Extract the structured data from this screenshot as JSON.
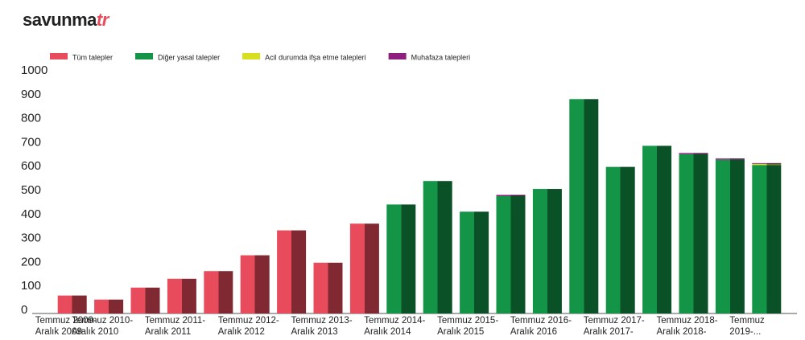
{
  "brand": {
    "text": "savunma",
    "accent": "tr"
  },
  "chart_data": {
    "type": "stacked_bar",
    "categories": [
      "Temmuz 2009-\nAralık 2009",
      "Temmuz 2010-\nAralık 2010",
      null,
      "Temmuz 2011-\nAralık 2011",
      null,
      "Temmuz 2012-\nAralık 2012",
      null,
      "Temmuz 2013-\nAralık 2013",
      null,
      "Temmuz 2014-\nAralık 2014",
      null,
      "Temmuz 2015-\nAralık 2015",
      null,
      "Temmuz 2016-\nAralık 2016",
      null,
      "Temmuz 2017-\nAralık 2017-",
      null,
      "Temmuz 2018-\nAralık 2018-",
      null,
      "Temmuz\n2019-..."
    ],
    "series": [
      {
        "name": "Tüm talepler",
        "color": "#e84b5b",
        "values": [
          75,
          58,
          108,
          145,
          177,
          243,
          347,
          212,
          375,
          null,
          null,
          null,
          null,
          null,
          null,
          null,
          null,
          null,
          null,
          null
        ]
      },
      {
        "name": "Diğer yasal talepler",
        "color": "#149447",
        "values": [
          null,
          null,
          null,
          null,
          null,
          null,
          null,
          null,
          null,
          455,
          553,
          425,
          490,
          520,
          895,
          612,
          700,
          665,
          642,
          620
        ]
      },
      {
        "name": "Acil durumda ifşa etme talepleri",
        "color": "#d6e021",
        "values": [
          null,
          null,
          null,
          null,
          null,
          null,
          null,
          null,
          null,
          null,
          null,
          null,
          null,
          null,
          null,
          null,
          null,
          null,
          null,
          5
        ]
      },
      {
        "name": "Muhafaza talepleri",
        "color": "#8e1f7e",
        "values": [
          null,
          null,
          null,
          null,
          null,
          null,
          null,
          null,
          null,
          null,
          null,
          null,
          5,
          null,
          null,
          null,
          null,
          5,
          5,
          3
        ]
      }
    ],
    "ylim": [
      0,
      1000
    ],
    "yticks": [
      0,
      100,
      200,
      300,
      400,
      500,
      600,
      700,
      800,
      900,
      1000
    ],
    "grid": false
  }
}
